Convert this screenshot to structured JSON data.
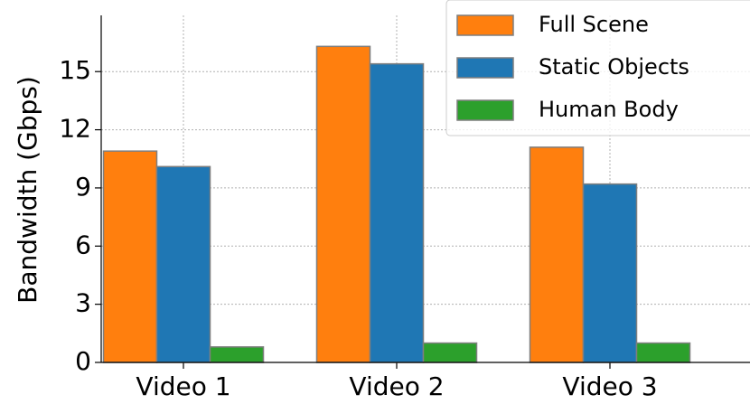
{
  "chart_data": {
    "type": "bar",
    "y_label": "Bandwidth (Gbps)",
    "categories": [
      "Video 1",
      "Video 2",
      "Video 3"
    ],
    "series": [
      {
        "name": "Full Scene",
        "color": "#ff7f0e",
        "values": [
          10.9,
          16.3,
          11.1
        ]
      },
      {
        "name": "Static Objects",
        "color": "#1f77b4",
        "values": [
          10.1,
          15.4,
          9.2
        ]
      },
      {
        "name": "Human Body",
        "color": "#2ca02c",
        "values": [
          0.8,
          1.0,
          1.0
        ]
      }
    ],
    "ylim": [
      0,
      17.9
    ],
    "yticks": [
      0,
      3,
      6,
      9,
      12,
      15
    ],
    "grid": true,
    "legend": "upper right"
  }
}
